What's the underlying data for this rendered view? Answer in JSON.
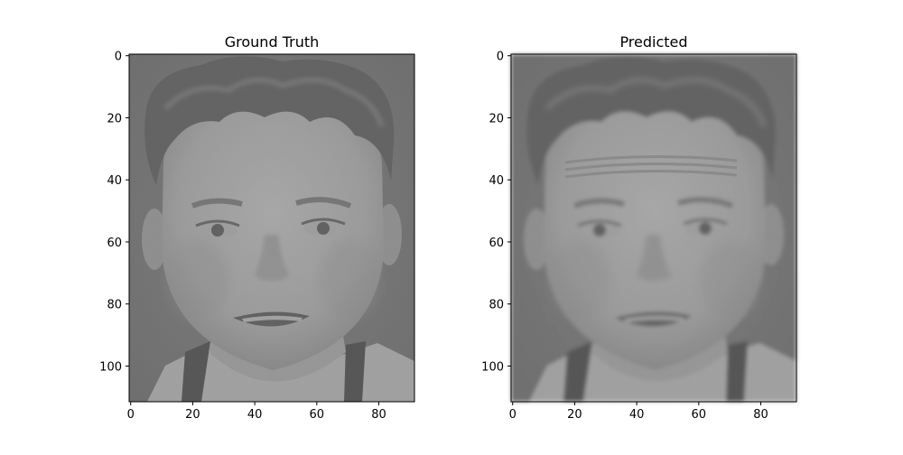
{
  "panels": [
    {
      "title": "Ground Truth",
      "image": "grayscale-face-portrait",
      "xticks": [
        "0",
        "20",
        "40",
        "60",
        "80"
      ],
      "yticks": [
        "0",
        "20",
        "40",
        "60",
        "80",
        "100"
      ],
      "xlim": [
        -0.5,
        91.5
      ],
      "ylim": [
        111.5,
        -0.5
      ]
    },
    {
      "title": "Predicted",
      "image": "grayscale-face-portrait-reconstruction",
      "xticks": [
        "0",
        "20",
        "40",
        "60",
        "80"
      ],
      "yticks": [
        "0",
        "20",
        "40",
        "60",
        "80",
        "100"
      ],
      "xlim": [
        -0.5,
        91.5
      ],
      "ylim": [
        111.5,
        -0.5
      ]
    }
  ]
}
